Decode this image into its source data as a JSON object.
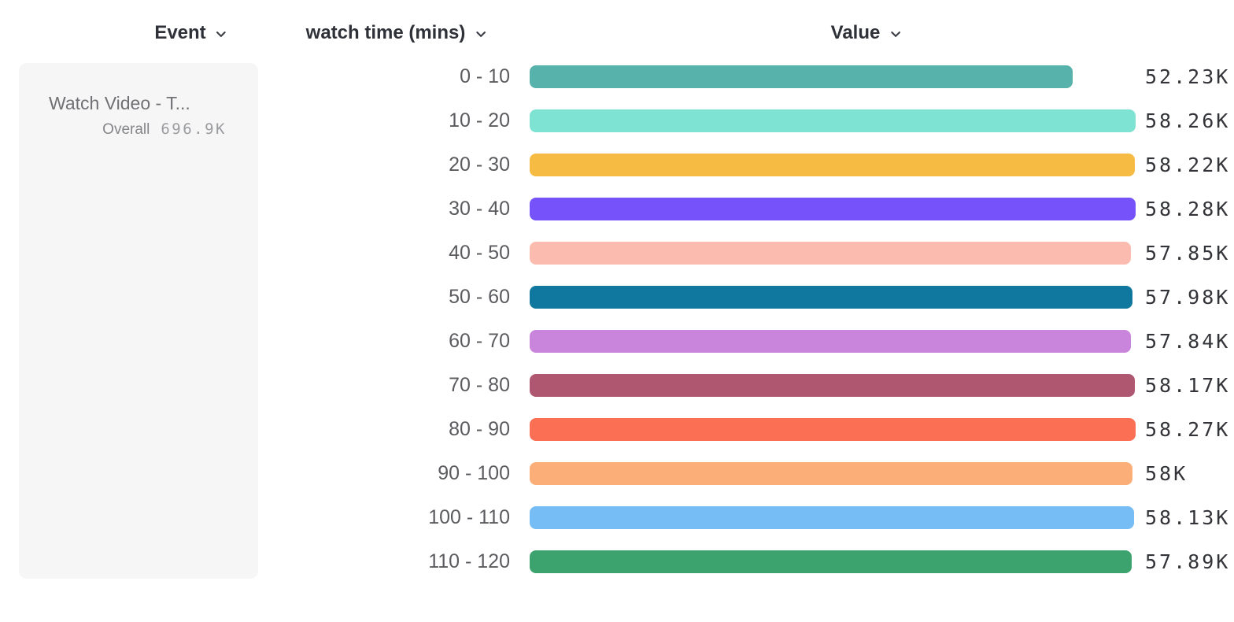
{
  "columns": {
    "event": {
      "label": "Event",
      "icon": "chevron-down"
    },
    "breakdown": {
      "label": "watch time (mins)",
      "icon": "chevron-down"
    },
    "value": {
      "label": "Value",
      "icon": "chevron-down"
    }
  },
  "event_card": {
    "title": "Watch Video - T...",
    "overall_label": "Overall",
    "overall_value": "696.9K"
  },
  "chart_data": {
    "type": "bar",
    "orientation": "horizontal",
    "title": "",
    "xlabel": "Value",
    "ylabel": "watch time (mins)",
    "categories": [
      "0 - 10",
      "10 - 20",
      "20 - 30",
      "30 - 40",
      "40 - 50",
      "50 - 60",
      "60 - 70",
      "70 - 80",
      "80 - 90",
      "90 - 100",
      "100 - 110",
      "110 - 120"
    ],
    "values": [
      52230,
      58260,
      58220,
      58280,
      57850,
      57980,
      57840,
      58170,
      58270,
      58000,
      58130,
      57890
    ],
    "value_labels": [
      "52.23K",
      "58.26K",
      "58.22K",
      "58.28K",
      "57.85K",
      "57.98K",
      "57.84K",
      "58.17K",
      "58.27K",
      "58K",
      "58.13K",
      "57.89K"
    ],
    "bar_colors": [
      "#57B2AB",
      "#7FE3D4",
      "#F6BB42",
      "#7552FA",
      "#FCBBAF",
      "#10789E",
      "#C985DC",
      "#AF5770",
      "#FB7054",
      "#FBAE77",
      "#75BDF4",
      "#3CA36E"
    ],
    "xlim": [
      0,
      58280
    ],
    "grid": false,
    "legend": false,
    "overall_total": "696.9K"
  },
  "colors": {
    "accent_teal": "#57B2AB",
    "header_text": "#2E3138",
    "category_text": "#5A5B5F",
    "value_text": "#333439",
    "card_bg": "#F6F6F7",
    "card_title_text": "#717175",
    "page_bg": "#FFFFFF"
  }
}
